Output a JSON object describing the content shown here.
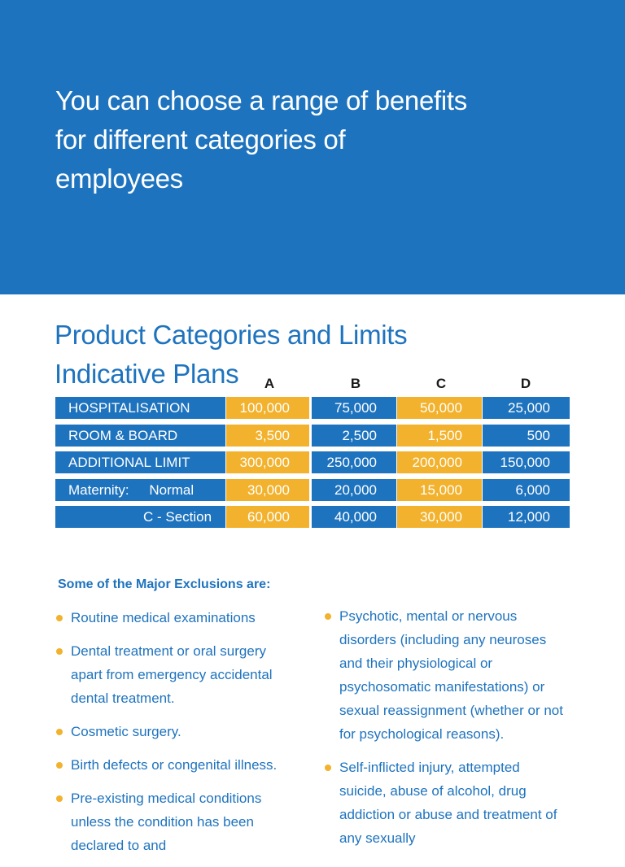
{
  "hero": {
    "title": "You can choose a range of benefits for different categories of employees"
  },
  "section": {
    "title_line1": "Product Categories and Limits",
    "title_line2": "Indicative Plans"
  },
  "plans_table": {
    "columns": [
      "A",
      "B",
      "C",
      "D"
    ],
    "rows": [
      {
        "label": "HOSPITALISATION",
        "values": [
          "100,000",
          "75,000",
          "50,000",
          "25,000"
        ]
      },
      {
        "label": "ROOM & BOARD",
        "values": [
          "3,500",
          "2,500",
          "1,500",
          "500"
        ]
      },
      {
        "label": "ADDITIONAL LIMIT",
        "values": [
          "300,000",
          "250,000",
          "200,000",
          "150,000"
        ]
      },
      {
        "label": "Maternity:",
        "sublabel": "Normal",
        "values": [
          "30,000",
          "20,000",
          "15,000",
          "6,000"
        ]
      },
      {
        "label": "",
        "sublabel": "C - Section",
        "values": [
          "60,000",
          "40,000",
          "30,000",
          "12,000"
        ]
      }
    ]
  },
  "exclusions": {
    "title": "Some of the Major Exclusions are:",
    "left": [
      "Routine medical examinations",
      "Dental treatment or oral surgery apart from emergency accidental dental treatment.",
      "Cosmetic surgery.",
      "Birth defects or congenital illness.",
      "Pre-existing medical conditions unless the condition has been declared to and"
    ],
    "right": [
      "Psychotic, mental or nervous disorders (including any neuroses and their physiological or psychosomatic manifestations) or sexual reassignment (whether or not for psychological reasons).",
      "Self-inflicted injury, attempted suicide, abuse of alcohol, drug addiction or abuse and treatment of any sexually"
    ]
  },
  "colors": {
    "brand_blue": "#1e73be",
    "accent_gold": "#f2b22d"
  }
}
